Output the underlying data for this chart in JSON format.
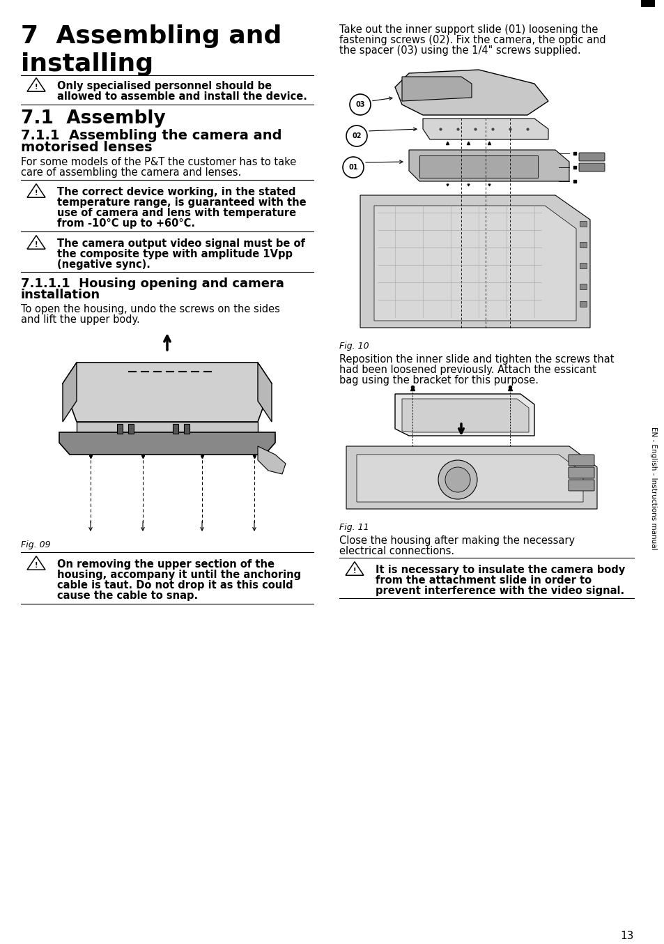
{
  "page_number": "13",
  "bg_color": "#ffffff",
  "text_color": "#000000",
  "title_line1": "7  Assembling and",
  "title_line2": "installing",
  "title_fontsize": 26,
  "section_71": "7.1  Assembly",
  "section_71_fontsize": 19,
  "section_711_line1": "7.1.1  Assembling the camera and",
  "section_711_line2": "motorised lenses",
  "section_711_fontsize": 14,
  "para_711_line1": "For some models of the P&T the customer has to take",
  "para_711_line2": "care of assembling the camera and lenses.",
  "para_fontsize": 10.5,
  "warn1_line1": "The correct device working, in the stated",
  "warn1_line2": "temperature range, is guaranteed with the",
  "warn1_line3": "use of camera and lens with temperature",
  "warn1_line4": "from -10°C up to +60°C.",
  "warn_fontsize": 10.5,
  "warn2_line1": "The camera output video signal must be of",
  "warn2_line2": "the composite type with amplitude 1Vpp",
  "warn2_line3": "(negative sync).",
  "section_7111_line1": "7.1.1.1  Housing opening and camera",
  "section_7111_line2": "installation",
  "section_7111_fontsize": 13,
  "para_7111_line1": "To open the housing, undo the screws on the sides",
  "para_7111_line2": "and lift the upper body.",
  "fig09_label": "Fig. 09",
  "fig10_label": "Fig. 10",
  "fig11_label": "Fig. 11",
  "warn_install_line1": "On removing the upper section of the",
  "warn_install_line2": "housing, accompany it until the anchoring",
  "warn_install_line3": "cable is taut. Do not drop it as this could",
  "warn_install_line4": "cause the cable to snap.",
  "right_para1_line1": "Take out the inner support slide (01) loosening the",
  "right_para1_line2": "fastening screws (02). Fix the camera, the optic and",
  "right_para1_line3": "the spacer (03) using the 1/4\" screws supplied.",
  "right_para2_line1": "Reposition the inner slide and tighten the screws that",
  "right_para2_line2": "had been loosened previously. Attach the essicant",
  "right_para2_line3": "bag using the bracket for this purpose.",
  "right_para3_line1": "Close the housing after making the necessary",
  "right_para3_line2": "electrical connections.",
  "warn_final_line1": "It is necessary to insulate the camera body",
  "warn_final_line2": "from the attachment slide in order to",
  "warn_final_line3": "prevent interference with the video signal.",
  "warn_box1_line1": "Only specialised personnel should be",
  "warn_box1_line2": "allowed to assemble and install the device.",
  "sidebar_text": "EN - English - Instructions manual"
}
